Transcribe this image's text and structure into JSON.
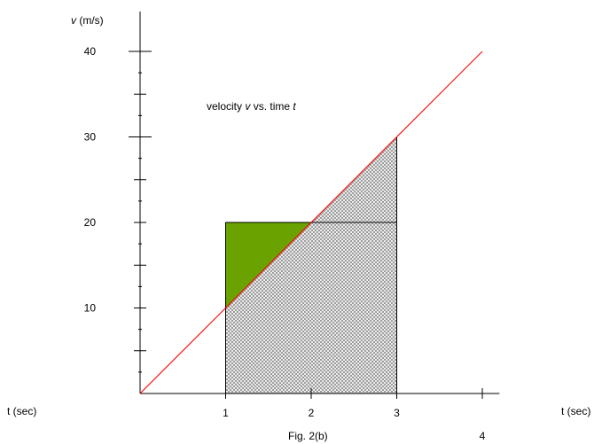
{
  "chart_data": {
    "type": "line",
    "title": {
      "pre": "velocity ",
      "v": "v",
      "mid": " vs. time ",
      "t": "t"
    },
    "caption": "Fig. 2(b)",
    "xlabel_left": "t (sec)",
    "xlabel_right": "t (sec)",
    "ylabel": {
      "var": "v",
      "unit": " (m/s)"
    },
    "xlim": [
      0,
      4.2
    ],
    "ylim": [
      0,
      40
    ],
    "x_ticks": [
      1,
      2,
      3,
      4
    ],
    "x_tick_labels": [
      "1",
      "2",
      "3",
      "4"
    ],
    "y_ticks": [
      5,
      10,
      15,
      20,
      25,
      30,
      35,
      40
    ],
    "y_tick_labels": [
      {
        "value": 10,
        "text": "10"
      },
      {
        "value": 20,
        "text": "20"
      },
      {
        "value": 30,
        "text": "30"
      },
      {
        "value": 40,
        "text": "40"
      }
    ],
    "series": [
      {
        "x": [
          0,
          4
        ],
        "y": [
          0,
          40
        ]
      }
    ],
    "shaded_regions": [
      {
        "kind": "hatch",
        "polygon": [
          [
            1,
            0
          ],
          [
            1,
            10
          ],
          [
            3,
            30
          ],
          [
            3,
            0
          ]
        ]
      },
      {
        "kind": "fill",
        "polygon": [
          [
            1,
            10
          ],
          [
            1,
            20
          ],
          [
            2,
            20
          ]
        ]
      }
    ],
    "outline_rect": {
      "x": [
        1,
        3
      ],
      "y": [
        0,
        20
      ]
    },
    "colors": {
      "line": "#ff0000",
      "triangle": "#6aa300",
      "hatch": "#8c8c8c",
      "axes": "#000000"
    }
  }
}
